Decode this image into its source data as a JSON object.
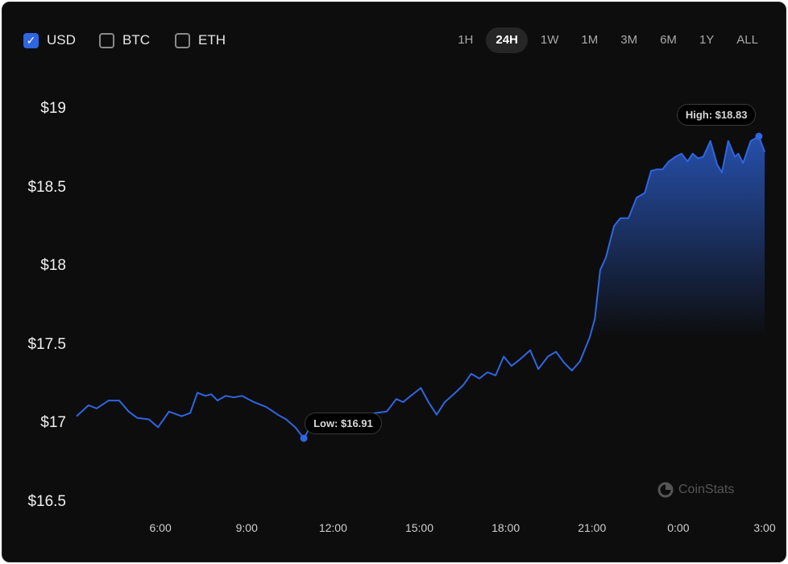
{
  "currencies": [
    {
      "label": "USD",
      "checked": true
    },
    {
      "label": "BTC",
      "checked": false
    },
    {
      "label": "ETH",
      "checked": false
    }
  ],
  "ranges": [
    {
      "label": "1H",
      "active": false
    },
    {
      "label": "24H",
      "active": true
    },
    {
      "label": "1W",
      "active": false
    },
    {
      "label": "1M",
      "active": false
    },
    {
      "label": "3M",
      "active": false
    },
    {
      "label": "6M",
      "active": false
    },
    {
      "label": "1Y",
      "active": false
    },
    {
      "label": "ALL",
      "active": false
    }
  ],
  "watermark": "CoinStats",
  "colors": {
    "line": "#2f66e0",
    "background": "#0d0d0d"
  },
  "chart_data": {
    "type": "area",
    "y_ticks": [
      "$19",
      "$18.5",
      "$18",
      "$17.5",
      "$17",
      "$16.5"
    ],
    "y_tick_values": [
      19,
      18.5,
      18,
      17.5,
      17,
      16.5
    ],
    "ylim": [
      16.5,
      19
    ],
    "x_ticks": [
      "6:00",
      "9:00",
      "12:00",
      "15:00",
      "18:00",
      "21:00",
      "0:00",
      "3:00"
    ],
    "high_label": "High: $18.83",
    "low_label": "Low: $16.91",
    "grid": false,
    "series": [
      {
        "points": [
          [
            "3:05",
            17.05
          ],
          [
            "3:30",
            17.12
          ],
          [
            "3:47",
            17.1
          ],
          [
            "4:12",
            17.15
          ],
          [
            "4:34",
            17.15
          ],
          [
            "4:54",
            17.08
          ],
          [
            "5:11",
            17.04
          ],
          [
            "5:36",
            17.03
          ],
          [
            "5:55",
            16.98
          ],
          [
            "6:18",
            17.08
          ],
          [
            "6:44",
            17.05
          ],
          [
            "7:02",
            17.07
          ],
          [
            "7:17",
            17.2
          ],
          [
            "7:34",
            17.18
          ],
          [
            "7:46",
            17.19
          ],
          [
            "7:59",
            17.15
          ],
          [
            "8:16",
            17.18
          ],
          [
            "8:33",
            17.17
          ],
          [
            "8:50",
            17.18
          ],
          [
            "9:15",
            17.14
          ],
          [
            "9:40",
            17.11
          ],
          [
            "10:05",
            17.06
          ],
          [
            "10:22",
            17.03
          ],
          [
            "10:41",
            16.98
          ],
          [
            "10:59",
            16.91
          ],
          [
            "11:21",
            17.03
          ],
          [
            "11:54",
            17.04
          ],
          [
            "12:28",
            17.04
          ],
          [
            "13:02",
            17.05
          ],
          [
            "13:27",
            17.07
          ],
          [
            "13:52",
            17.08
          ],
          [
            "14:12",
            17.16
          ],
          [
            "14:26",
            17.14
          ],
          [
            "14:42",
            17.18
          ],
          [
            "15:03",
            17.23
          ],
          [
            "15:19",
            17.14
          ],
          [
            "15:36",
            17.06
          ],
          [
            "15:53",
            17.14
          ],
          [
            "16:15",
            17.2
          ],
          [
            "16:32",
            17.25
          ],
          [
            "16:48",
            17.32
          ],
          [
            "17:05",
            17.29
          ],
          [
            "17:22",
            17.33
          ],
          [
            "17:39",
            17.31
          ],
          [
            "17:56",
            17.43
          ],
          [
            "18:12",
            17.37
          ],
          [
            "18:29",
            17.41
          ],
          [
            "18:51",
            17.47
          ],
          [
            "19:08",
            17.35
          ],
          [
            "19:28",
            17.43
          ],
          [
            "19:45",
            17.46
          ],
          [
            "20:02",
            17.39
          ],
          [
            "20:18",
            17.34
          ],
          [
            "20:35",
            17.4
          ],
          [
            "20:55",
            17.55
          ],
          [
            "21:06",
            17.67
          ],
          [
            "21:17",
            17.98
          ],
          [
            "21:29",
            18.06
          ],
          [
            "21:46",
            18.26
          ],
          [
            "21:59",
            18.31
          ],
          [
            "22:16",
            18.31
          ],
          [
            "22:33",
            18.44
          ],
          [
            "22:50",
            18.47
          ],
          [
            "23:03",
            18.61
          ],
          [
            "23:15",
            18.62
          ],
          [
            "23:27",
            18.62
          ],
          [
            "23:40",
            18.67
          ],
          [
            "23:54",
            18.7
          ],
          [
            "0:07",
            18.72
          ],
          [
            "0:19",
            18.67
          ],
          [
            "0:30",
            18.72
          ],
          [
            "0:41",
            18.69
          ],
          [
            "0:52",
            18.7
          ],
          [
            "1:07",
            18.8
          ],
          [
            "1:21",
            18.65
          ],
          [
            "1:31",
            18.6
          ],
          [
            "1:44",
            18.8
          ],
          [
            "1:58",
            18.7
          ],
          [
            "2:05",
            18.72
          ],
          [
            "2:15",
            18.66
          ],
          [
            "2:31",
            18.8
          ],
          [
            "2:48",
            18.83
          ],
          [
            "3:00",
            18.73
          ]
        ]
      }
    ]
  }
}
